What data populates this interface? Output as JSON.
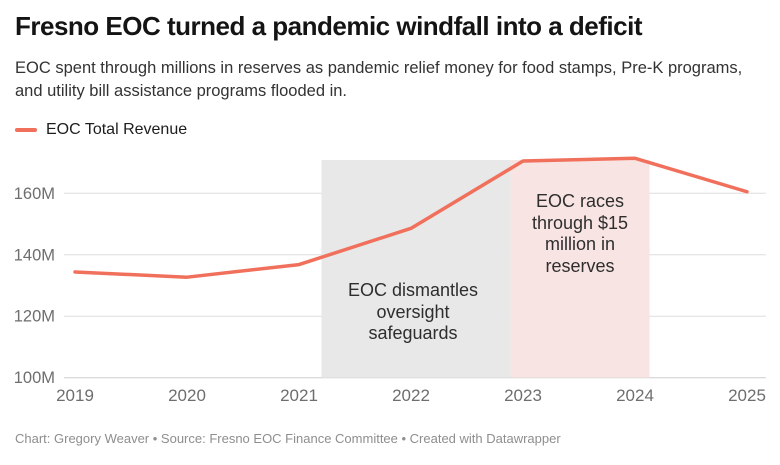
{
  "header": {
    "title": "Fresno EOC turned a pandemic windfall into a deficit",
    "subtitle": "EOC spent through millions in reserves as pandemic relief money for food stamps, Pre-K programs, and utility bill assistance programs flooded in."
  },
  "legend": {
    "items": [
      {
        "label": "EOC Total Revenue",
        "color": "#F0705C"
      }
    ]
  },
  "chart_data": {
    "type": "line",
    "title": "Fresno EOC turned a pandemic windfall into a deficit",
    "x": [
      2019,
      2020,
      2021,
      2022,
      2023,
      2024,
      2025
    ],
    "series": [
      {
        "name": "EOC Total Revenue",
        "values": [
          134.4,
          132.7,
          136.8,
          148.6,
          170.5,
          171.4,
          160.5
        ],
        "color": "#F0705C"
      }
    ],
    "xlabel": "",
    "ylabel": "",
    "ylim": [
      100,
      173
    ],
    "yticks": [
      100,
      120,
      140,
      160
    ],
    "ytick_labels": [
      "100M",
      "120M",
      "140M",
      "160M"
    ],
    "grid": "horizontal",
    "legend_position": "top-left",
    "regions": [
      {
        "x_start": 2021.2,
        "x_end": 2022.89,
        "color": "#E8E8E8",
        "label": "EOC dismantles oversight safeguards"
      },
      {
        "x_start": 2022.89,
        "x_end": 2024.13,
        "color": "#F8E4E2",
        "label": "EOC races through $15 million in reserves"
      }
    ],
    "annotations": [
      {
        "text": "EOC dismantles oversight safeguards",
        "region": "gray"
      },
      {
        "text": "EOC races through $15 million in reserves",
        "region": "pink"
      }
    ],
    "colors": {
      "grid_line": "#DDDDDD",
      "baseline": "#CDCDCD",
      "axis_text": "#6E6E6E"
    }
  },
  "footer": {
    "text": "Chart: Gregory Weaver • Source: Fresno EOC Finance Committee • Created with Datawrapper"
  }
}
